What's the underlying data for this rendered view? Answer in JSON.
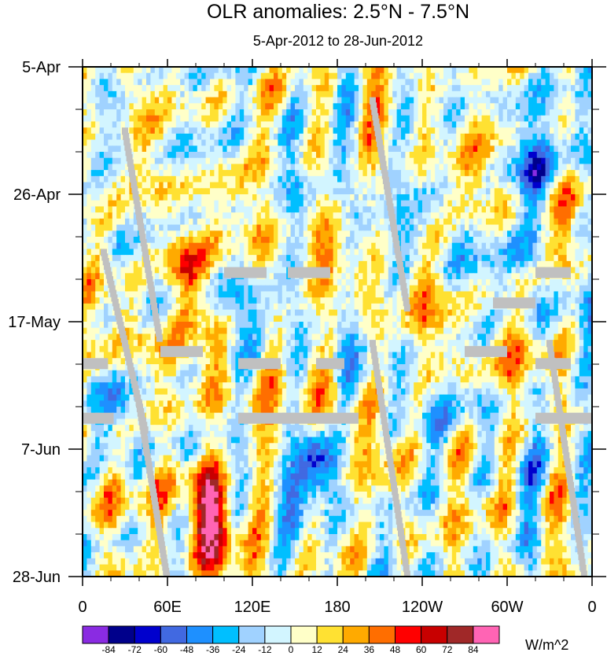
{
  "chart_data": {
    "type": "heatmap",
    "title": "OLR anomalies: 2.5°N - 7.5°N",
    "subtitle": "5-Apr-2012 to 28-Jun-2012",
    "x_ticks": [
      {
        "label": "0",
        "lon": 0
      },
      {
        "label": "60E",
        "lon": 60
      },
      {
        "label": "120E",
        "lon": 120
      },
      {
        "label": "180",
        "lon": 180
      },
      {
        "label": "120W",
        "lon": 240
      },
      {
        "label": "60W",
        "lon": 300
      },
      {
        "label": "0",
        "lon": 360
      }
    ],
    "x_range": [
      0,
      360
    ],
    "y_ticks": [
      {
        "label": "5-Apr",
        "day": 0
      },
      {
        "label": "26-Apr",
        "day": 21
      },
      {
        "label": "17-May",
        "day": 42
      },
      {
        "label": "7-Jun",
        "day": 63
      },
      {
        "label": "28-Jun",
        "day": 84
      }
    ],
    "y_range": [
      0,
      84
    ],
    "colorbar": {
      "units": "W/m^2",
      "levels": [
        -84,
        -72,
        -60,
        -48,
        -36,
        -24,
        -12,
        0,
        12,
        24,
        36,
        48,
        60,
        72,
        84
      ],
      "colors": [
        "#8a2be2",
        "#00008b",
        "#0000cd",
        "#4169e1",
        "#1e90ff",
        "#00bfff",
        "#a0d2ff",
        "#d2f5ff",
        "#ffffc8",
        "#ffe132",
        "#ffaa00",
        "#ff6e00",
        "#ff0000",
        "#c80000",
        "#a02828",
        "#ff64b4"
      ]
    },
    "anomaly_features": [
      {
        "name": "strong positive anomaly",
        "lon": 70,
        "day": 33,
        "value": 60
      },
      {
        "name": "strong positive anomaly",
        "lon": 85,
        "day": 69,
        "value": 75
      },
      {
        "name": "strong positive anomaly",
        "lon": 95,
        "day": 78,
        "value": 55
      },
      {
        "name": "positive anomaly band",
        "lon": 175,
        "day": 55,
        "value": 36
      },
      {
        "name": "negative anomaly",
        "lon": 165,
        "day": 64,
        "value": -72
      },
      {
        "name": "negative anomaly",
        "lon": 320,
        "day": 18,
        "value": -60
      }
    ],
    "missing_color": "#c0c0c0"
  }
}
